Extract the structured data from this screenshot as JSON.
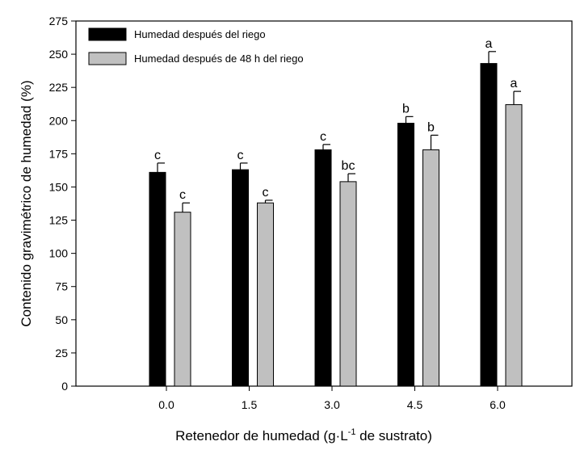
{
  "chart_data": {
    "type": "bar",
    "title": "",
    "xlabel_main": "Retenedor de humedad (g·L",
    "xlabel_sup": "-1",
    "xlabel_tail": " de sustrato)",
    "ylabel": "Contenido gravimétrico de humedad (%)",
    "ylim": [
      0,
      275
    ],
    "yticks": [
      "0",
      "25",
      "50",
      "75",
      "100",
      "125",
      "150",
      "175",
      "200",
      "225",
      "250",
      "275"
    ],
    "categories": [
      "0.0",
      "1.5",
      "3.0",
      "4.5",
      "6.0"
    ],
    "legend_position": "top-left",
    "series": [
      {
        "name": "Humedad después del riego",
        "color": "#000000",
        "values": [
          161,
          163,
          178,
          198,
          243
        ],
        "errors": [
          7,
          5,
          4,
          5,
          9
        ],
        "letters": [
          "c",
          "c",
          "c",
          "b",
          "a"
        ]
      },
      {
        "name": "Humedad después de 48 h del riego",
        "color": "#c0c0c0",
        "values": [
          131,
          138,
          154,
          178,
          212
        ],
        "errors": [
          7,
          2,
          6,
          11,
          10
        ],
        "letters": [
          "c",
          "c",
          "bc",
          "b",
          "a"
        ]
      }
    ]
  }
}
